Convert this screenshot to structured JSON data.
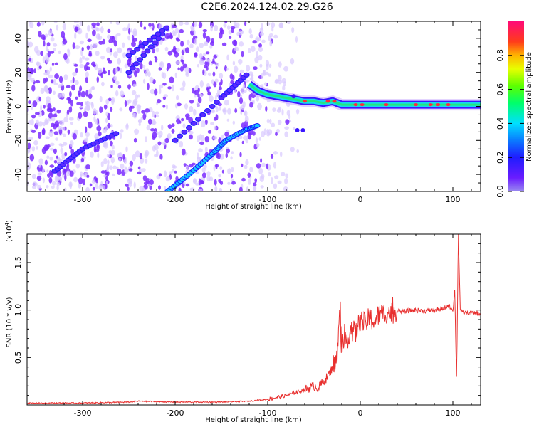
{
  "title": "C2E6.2024.124.02.29.G26",
  "colors": {
    "snr_line": "#e8302f",
    "frame": "#000000",
    "noise_purple": "#7a2bff",
    "noise_light": "#d9c9ff"
  },
  "chart_data": [
    {
      "type": "heatmap",
      "xlabel": "Height of straight line (km)",
      "ylabel": "Frequency (Hz)",
      "xlim": [
        -360,
        130
      ],
      "ylim": [
        -50,
        50
      ],
      "x_ticks": [
        -300,
        -200,
        -100,
        0,
        100
      ],
      "y_ticks": [
        -40,
        -20,
        0,
        20,
        40
      ],
      "colorbar": {
        "label": "Normalized spectral amplitude",
        "range": [
          0.0,
          1.0
        ],
        "ticks": [
          "0.0",
          "0.2",
          "0.4",
          "0.6",
          "0.8"
        ],
        "tick_values": [
          0.0,
          0.2,
          0.4,
          0.6,
          0.8
        ],
        "colormap": "rainbow (purple-blue-cyan-green-yellow-red-magenta)"
      },
      "features": {
        "main_signal": [
          [
            -120,
            13
          ],
          [
            -110,
            9
          ],
          [
            -100,
            7
          ],
          [
            -90,
            6
          ],
          [
            -80,
            5
          ],
          [
            -70,
            4
          ],
          [
            -60,
            3
          ],
          [
            -50,
            3
          ],
          [
            -40,
            2
          ],
          [
            -30,
            3
          ],
          [
            -20,
            1
          ],
          [
            0,
            1
          ],
          [
            20,
            1
          ],
          [
            50,
            1
          ],
          [
            100,
            1
          ],
          [
            130,
            1
          ]
        ],
        "aliased_streaks": [
          [
            [
              -208,
              -50
            ],
            [
              -185,
              -40
            ],
            [
              -160,
              -28
            ],
            [
              -145,
              -20
            ],
            [
              -125,
              -14
            ],
            [
              -110,
              -11
            ]
          ],
          [
            [
              -200,
              -20
            ],
            [
              -150,
              5
            ],
            [
              -120,
              20
            ]
          ],
          [
            [
              -250,
              20
            ],
            [
              -210,
              45
            ]
          ],
          [
            [
              -330,
              -38
            ],
            [
              -300,
              -25
            ],
            [
              -260,
              -15
            ]
          ],
          [
            [
              -250,
              30
            ],
            [
              -205,
              48
            ]
          ]
        ],
        "noise_region_end_x": -90
      }
    },
    {
      "type": "line",
      "xlabel": "Height of straight line (km)",
      "ylabel": "SNR (10 * v/v)",
      "y_multiplier": "(x10",
      "y_multiplier_exp": "4",
      "xlim": [
        -360,
        130
      ],
      "ylim": [
        0.0,
        1.8
      ],
      "x_ticks": [
        -300,
        -200,
        -100,
        0,
        100
      ],
      "y_ticks": [
        "0.5",
        "1.0",
        "1.5"
      ],
      "y_tick_values": [
        0.5,
        1.0,
        1.5
      ],
      "series": [
        {
          "x": [
            -360,
            -300,
            -250,
            -240,
            -200,
            -150,
            -120,
            -100,
            -90,
            -80,
            -70,
            -60,
            -50,
            -45,
            -40,
            -35,
            -30,
            -25,
            -22,
            -20,
            -15,
            -10,
            -5,
            0,
            5,
            10,
            15,
            20,
            25,
            30,
            35,
            40,
            45,
            50,
            60,
            70,
            80,
            90,
            95,
            100,
            102,
            104,
            106,
            108,
            110,
            120,
            130
          ],
          "y": [
            0.02,
            0.02,
            0.03,
            0.04,
            0.03,
            0.03,
            0.04,
            0.06,
            0.08,
            0.1,
            0.13,
            0.16,
            0.2,
            0.18,
            0.25,
            0.3,
            0.4,
            0.5,
            1.0,
            0.55,
            0.68,
            0.8,
            0.75,
            0.9,
            0.85,
            0.92,
            0.88,
            0.95,
            0.96,
            0.98,
            0.97,
            1.0,
            0.98,
            0.99,
            1.0,
            0.99,
            1.0,
            1.01,
            1.05,
            1.0,
            1.2,
            0.28,
            1.8,
            1.0,
            0.97,
            0.97,
            0.96
          ]
        }
      ]
    }
  ]
}
